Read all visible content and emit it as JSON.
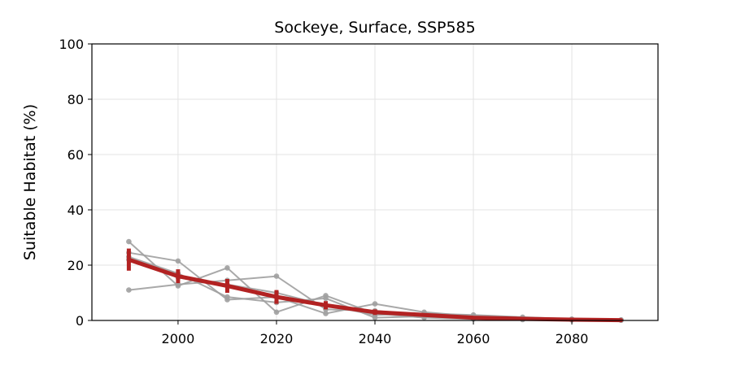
{
  "chart_data": {
    "type": "line",
    "title": "Sockeye, Surface, SSP585",
    "xlabel": "",
    "ylabel": "Suitable Habitat (%)",
    "xlim": [
      1982.5,
      2097.5
    ],
    "ylim": [
      0,
      100
    ],
    "xticks": [
      2000,
      2020,
      2040,
      2060,
      2080
    ],
    "yticks": [
      0,
      20,
      40,
      60,
      80,
      100
    ],
    "grid": true,
    "colors": {
      "models": "#a0a0a0",
      "mean": "#b22222"
    },
    "x": [
      1990,
      2000,
      2010,
      2020,
      2030,
      2040,
      2050,
      2060,
      2070,
      2080,
      2090
    ],
    "model_series": [
      {
        "values": [
          28.5,
          12.5,
          19.0,
          3.0,
          9.0,
          2.5,
          1.0,
          0.5,
          0.3,
          0.2,
          0.1
        ]
      },
      {
        "values": [
          24.5,
          21.5,
          7.5,
          8.5,
          2.5,
          6.0,
          3.0,
          1.5,
          0.8,
          0.4,
          0.2
        ]
      },
      {
        "values": [
          11.0,
          13.0,
          14.5,
          16.0,
          4.0,
          3.5,
          2.0,
          1.0,
          0.5,
          0.3,
          0.1
        ]
      },
      {
        "values": [
          23.0,
          17.0,
          8.5,
          6.5,
          8.0,
          1.0,
          1.5,
          0.8,
          0.5,
          0.2,
          0.1
        ]
      },
      {
        "values": [
          22.0,
          15.5,
          13.0,
          10.0,
          5.5,
          2.0,
          2.5,
          2.0,
          1.2,
          0.5,
          0.2
        ]
      }
    ],
    "mean": [
      22.0,
      16.0,
      12.5,
      8.5,
      5.5,
      3.0,
      2.0,
      1.0,
      0.6,
      0.3,
      0.1
    ],
    "err": [
      4.0,
      2.5,
      2.5,
      2.5,
      1.5,
      1.0,
      0.6,
      0.3,
      0.2,
      0.1,
      0.05
    ]
  }
}
